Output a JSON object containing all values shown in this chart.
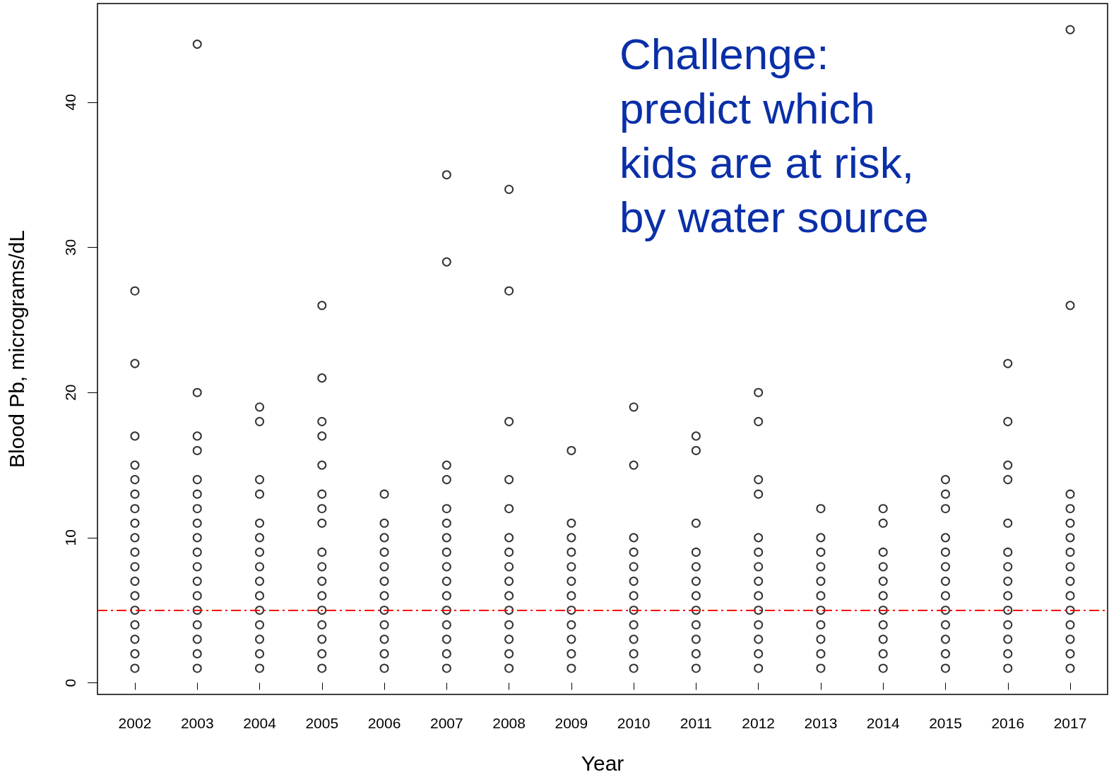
{
  "chart_data": {
    "type": "scatter",
    "xlabel": "Year",
    "ylabel": "Blood Pb, micrograms/dL",
    "xlim": [
      2001.4,
      2017.6
    ],
    "xticks": [
      2002,
      2003,
      2004,
      2005,
      2006,
      2007,
      2008,
      2009,
      2010,
      2011,
      2012,
      2013,
      2014,
      2015,
      2016,
      2017
    ],
    "ylim": [
      -0.8,
      46.8
    ],
    "yticks": [
      0,
      10,
      20,
      30,
      40
    ],
    "grid": false,
    "marker": "circle",
    "annotations": [
      "Challenge:\npredict which\nkids are at risk,\nby water source"
    ],
    "ref_lines": [
      {
        "axis": "y",
        "value": 5,
        "label": null,
        "color": "#ff0000",
        "line_style": "dashed"
      }
    ],
    "series": [
      {
        "color": "#000000",
        "x": [
          2002,
          2002,
          2002,
          2002,
          2002,
          2002,
          2002,
          2002,
          2002,
          2002,
          2002,
          2002,
          2002,
          2002,
          2002,
          2002,
          2002,
          2002,
          2003,
          2003,
          2003,
          2003,
          2003,
          2003,
          2003,
          2003,
          2003,
          2003,
          2003,
          2003,
          2003,
          2003,
          2003,
          2003,
          2003,
          2003,
          2004,
          2004,
          2004,
          2004,
          2004,
          2004,
          2004,
          2004,
          2004,
          2004,
          2004,
          2004,
          2004,
          2004,
          2004,
          2005,
          2005,
          2005,
          2005,
          2005,
          2005,
          2005,
          2005,
          2005,
          2005,
          2005,
          2005,
          2005,
          2005,
          2005,
          2005,
          2005,
          2006,
          2006,
          2006,
          2006,
          2006,
          2006,
          2006,
          2006,
          2006,
          2006,
          2006,
          2006,
          2007,
          2007,
          2007,
          2007,
          2007,
          2007,
          2007,
          2007,
          2007,
          2007,
          2007,
          2007,
          2007,
          2007,
          2007,
          2007,
          2008,
          2008,
          2008,
          2008,
          2008,
          2008,
          2008,
          2008,
          2008,
          2008,
          2008,
          2008,
          2008,
          2008,
          2008,
          2009,
          2009,
          2009,
          2009,
          2009,
          2009,
          2009,
          2009,
          2009,
          2009,
          2009,
          2009,
          2010,
          2010,
          2010,
          2010,
          2010,
          2010,
          2010,
          2010,
          2010,
          2010,
          2010,
          2010,
          2011,
          2011,
          2011,
          2011,
          2011,
          2011,
          2011,
          2011,
          2011,
          2011,
          2011,
          2011,
          2012,
          2012,
          2012,
          2012,
          2012,
          2012,
          2012,
          2012,
          2012,
          2012,
          2012,
          2012,
          2012,
          2012,
          2013,
          2013,
          2013,
          2013,
          2013,
          2013,
          2013,
          2013,
          2013,
          2013,
          2013,
          2014,
          2014,
          2014,
          2014,
          2014,
          2014,
          2014,
          2014,
          2014,
          2014,
          2014,
          2015,
          2015,
          2015,
          2015,
          2015,
          2015,
          2015,
          2015,
          2015,
          2015,
          2015,
          2015,
          2015,
          2016,
          2016,
          2016,
          2016,
          2016,
          2016,
          2016,
          2016,
          2016,
          2016,
          2016,
          2016,
          2016,
          2016,
          2017,
          2017,
          2017,
          2017,
          2017,
          2017,
          2017,
          2017,
          2017,
          2017,
          2017,
          2017,
          2017,
          2017,
          2017
        ],
        "values": [
          1,
          2,
          3,
          4,
          5,
          6,
          7,
          8,
          9,
          10,
          11,
          12,
          13,
          14,
          15,
          17,
          22,
          27,
          1,
          2,
          3,
          4,
          5,
          6,
          7,
          8,
          9,
          10,
          11,
          12,
          13,
          14,
          16,
          17,
          20,
          44,
          1,
          2,
          3,
          4,
          5,
          6,
          7,
          8,
          9,
          10,
          11,
          13,
          14,
          18,
          19,
          1,
          2,
          3,
          4,
          5,
          6,
          7,
          8,
          9,
          11,
          12,
          13,
          15,
          17,
          18,
          21,
          26,
          1,
          2,
          3,
          4,
          5,
          6,
          7,
          8,
          9,
          10,
          11,
          13,
          1,
          2,
          3,
          4,
          5,
          6,
          7,
          8,
          9,
          10,
          11,
          12,
          14,
          15,
          29,
          35,
          1,
          2,
          3,
          4,
          5,
          6,
          7,
          8,
          9,
          10,
          12,
          14,
          18,
          27,
          34,
          1,
          2,
          3,
          4,
          5,
          6,
          7,
          8,
          9,
          10,
          11,
          16,
          1,
          2,
          3,
          4,
          5,
          6,
          7,
          8,
          9,
          10,
          15,
          19,
          1,
          2,
          3,
          4,
          5,
          6,
          7,
          8,
          9,
          11,
          16,
          17,
          1,
          2,
          3,
          4,
          5,
          6,
          7,
          8,
          9,
          10,
          13,
          14,
          18,
          20,
          1,
          2,
          3,
          4,
          5,
          6,
          7,
          8,
          9,
          10,
          12,
          1,
          2,
          3,
          4,
          5,
          6,
          7,
          8,
          9,
          11,
          12,
          1,
          2,
          3,
          4,
          5,
          6,
          7,
          8,
          9,
          10,
          12,
          13,
          14,
          1,
          2,
          3,
          4,
          5,
          6,
          7,
          8,
          9,
          11,
          14,
          15,
          18,
          22,
          1,
          2,
          3,
          4,
          5,
          6,
          7,
          8,
          9,
          10,
          11,
          12,
          13,
          26,
          45
        ]
      }
    ]
  }
}
